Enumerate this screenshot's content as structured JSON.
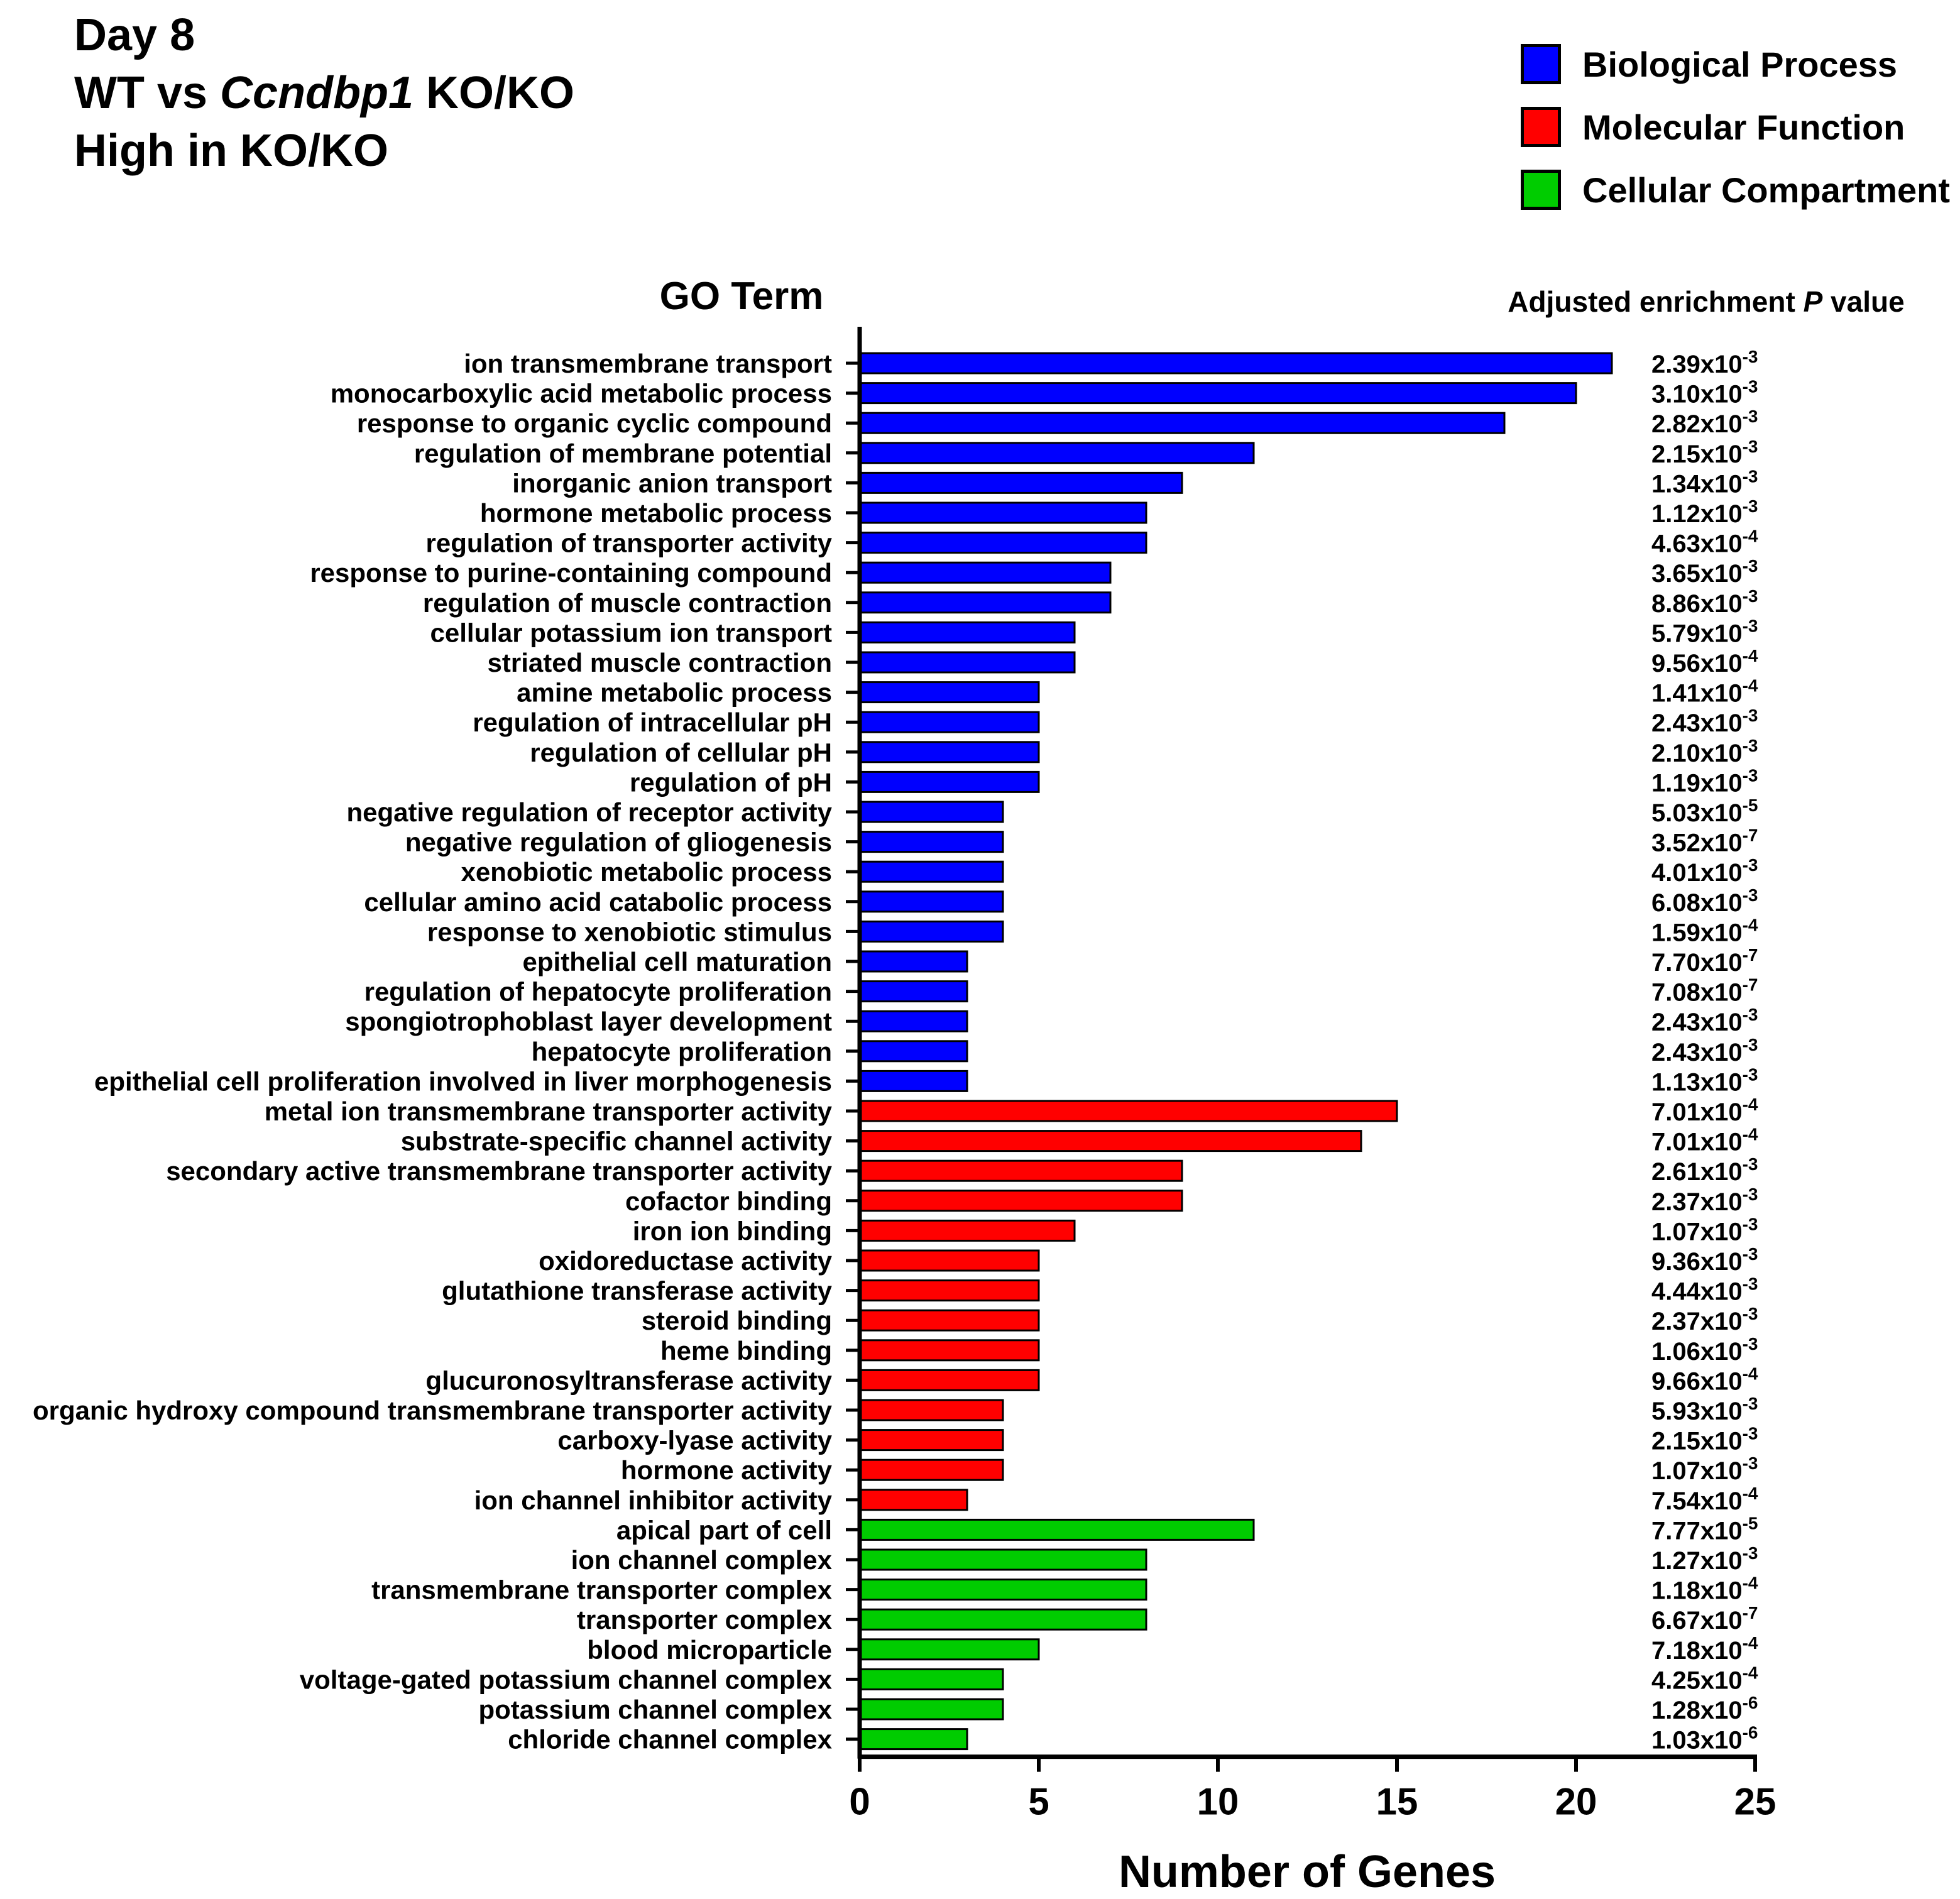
{
  "title": {
    "line1": "Day 8",
    "line2_prefix": "WT vs ",
    "line2_gene": "Ccndbp1",
    "line2_suffix": " KO/KO",
    "line3": "High in KO/KO"
  },
  "legend": [
    {
      "label": "Biological Process",
      "color": "#0000ff"
    },
    {
      "label": "Molecular Function",
      "color": "#ff0000"
    },
    {
      "label": "Cellular Compartment",
      "color": "#00cc00"
    }
  ],
  "chart_data": {
    "type": "bar",
    "orientation": "horizontal",
    "category_header": "GO Term",
    "pvalue_header_prefix": "Adjusted enrichment ",
    "pvalue_header_italic": "P",
    "pvalue_header_suffix": " value",
    "xlabel": "Number of Genes",
    "xlim": [
      0,
      25
    ],
    "xticks": [
      0,
      5,
      10,
      15,
      20,
      25
    ],
    "grid": false,
    "legend_position": "top-right",
    "bars": [
      {
        "term": "ion transmembrane transport",
        "value": 21,
        "group": "Biological Process",
        "p_mantissa": "2.39",
        "p_exp": "-3"
      },
      {
        "term": "monocarboxylic acid metabolic process",
        "value": 20,
        "group": "Biological Process",
        "p_mantissa": "3.10",
        "p_exp": "-3"
      },
      {
        "term": "response to organic cyclic compound",
        "value": 18,
        "group": "Biological Process",
        "p_mantissa": "2.82",
        "p_exp": "-3"
      },
      {
        "term": "regulation of membrane potential",
        "value": 11,
        "group": "Biological Process",
        "p_mantissa": "2.15",
        "p_exp": "-3"
      },
      {
        "term": "inorganic anion transport",
        "value": 9,
        "group": "Biological Process",
        "p_mantissa": "1.34",
        "p_exp": "-3"
      },
      {
        "term": "hormone metabolic process",
        "value": 8,
        "group": "Biological Process",
        "p_mantissa": "1.12",
        "p_exp": "-3"
      },
      {
        "term": "regulation of transporter activity",
        "value": 8,
        "group": "Biological Process",
        "p_mantissa": "4.63",
        "p_exp": "-4"
      },
      {
        "term": "response to purine-containing compound",
        "value": 7,
        "group": "Biological Process",
        "p_mantissa": "3.65",
        "p_exp": "-3"
      },
      {
        "term": "regulation of muscle contraction",
        "value": 7,
        "group": "Biological Process",
        "p_mantissa": "8.86",
        "p_exp": "-3"
      },
      {
        "term": "cellular potassium ion transport",
        "value": 6,
        "group": "Biological Process",
        "p_mantissa": "5.79",
        "p_exp": "-3"
      },
      {
        "term": "striated muscle contraction",
        "value": 6,
        "group": "Biological Process",
        "p_mantissa": "9.56",
        "p_exp": "-4"
      },
      {
        "term": "amine metabolic process",
        "value": 5,
        "group": "Biological Process",
        "p_mantissa": "1.41",
        "p_exp": "-4"
      },
      {
        "term": "regulation of intracellular pH",
        "value": 5,
        "group": "Biological Process",
        "p_mantissa": "2.43",
        "p_exp": "-3"
      },
      {
        "term": "regulation of cellular pH",
        "value": 5,
        "group": "Biological Process",
        "p_mantissa": "2.10",
        "p_exp": "-3"
      },
      {
        "term": "regulation of pH",
        "value": 5,
        "group": "Biological Process",
        "p_mantissa": "1.19",
        "p_exp": "-3"
      },
      {
        "term": "negative regulation of receptor activity",
        "value": 4,
        "group": "Biological Process",
        "p_mantissa": "5.03",
        "p_exp": "-5"
      },
      {
        "term": "negative regulation of gliogenesis",
        "value": 4,
        "group": "Biological Process",
        "p_mantissa": "3.52",
        "p_exp": "-7"
      },
      {
        "term": "xenobiotic metabolic process",
        "value": 4,
        "group": "Biological Process",
        "p_mantissa": "4.01",
        "p_exp": "-3"
      },
      {
        "term": "cellular amino acid catabolic process",
        "value": 4,
        "group": "Biological Process",
        "p_mantissa": "6.08",
        "p_exp": "-3"
      },
      {
        "term": "response to xenobiotic stimulus",
        "value": 4,
        "group": "Biological Process",
        "p_mantissa": "1.59",
        "p_exp": "-4"
      },
      {
        "term": "epithelial cell maturation",
        "value": 3,
        "group": "Biological Process",
        "p_mantissa": "7.70",
        "p_exp": "-7"
      },
      {
        "term": "regulation of hepatocyte proliferation",
        "value": 3,
        "group": "Biological Process",
        "p_mantissa": "7.08",
        "p_exp": "-7"
      },
      {
        "term": "spongiotrophoblast layer development",
        "value": 3,
        "group": "Biological Process",
        "p_mantissa": "2.43",
        "p_exp": "-3"
      },
      {
        "term": "hepatocyte proliferation",
        "value": 3,
        "group": "Biological Process",
        "p_mantissa": "2.43",
        "p_exp": "-3"
      },
      {
        "term": "epithelial cell proliferation involved in liver morphogenesis",
        "value": 3,
        "group": "Biological Process",
        "p_mantissa": "1.13",
        "p_exp": "-3"
      },
      {
        "term": "metal ion transmembrane transporter activity",
        "value": 15,
        "group": "Molecular Function",
        "p_mantissa": "7.01",
        "p_exp": "-4"
      },
      {
        "term": "substrate-specific channel activity",
        "value": 14,
        "group": "Molecular Function",
        "p_mantissa": "7.01",
        "p_exp": "-4"
      },
      {
        "term": "secondary active transmembrane transporter activity",
        "value": 9,
        "group": "Molecular Function",
        "p_mantissa": "2.61",
        "p_exp": "-3"
      },
      {
        "term": "cofactor binding",
        "value": 9,
        "group": "Molecular Function",
        "p_mantissa": "2.37",
        "p_exp": "-3"
      },
      {
        "term": "iron ion binding",
        "value": 6,
        "group": "Molecular Function",
        "p_mantissa": "1.07",
        "p_exp": "-3"
      },
      {
        "term": "oxidoreductase activity",
        "value": 5,
        "group": "Molecular Function",
        "p_mantissa": "9.36",
        "p_exp": "-3"
      },
      {
        "term": "glutathione transferase activity",
        "value": 5,
        "group": "Molecular Function",
        "p_mantissa": "4.44",
        "p_exp": "-3"
      },
      {
        "term": "steroid binding",
        "value": 5,
        "group": "Molecular Function",
        "p_mantissa": "2.37",
        "p_exp": "-3"
      },
      {
        "term": "heme binding",
        "value": 5,
        "group": "Molecular Function",
        "p_mantissa": "1.06",
        "p_exp": "-3"
      },
      {
        "term": "glucuronosyltransferase activity",
        "value": 5,
        "group": "Molecular Function",
        "p_mantissa": "9.66",
        "p_exp": "-4"
      },
      {
        "term": "organic hydroxy compound transmembrane transporter activity",
        "value": 4,
        "group": "Molecular Function",
        "p_mantissa": "5.93",
        "p_exp": "-3"
      },
      {
        "term": "carboxy-lyase activity",
        "value": 4,
        "group": "Molecular Function",
        "p_mantissa": "2.15",
        "p_exp": "-3"
      },
      {
        "term": "hormone activity",
        "value": 4,
        "group": "Molecular Function",
        "p_mantissa": "1.07",
        "p_exp": "-3"
      },
      {
        "term": "ion channel inhibitor activity",
        "value": 3,
        "group": "Molecular Function",
        "p_mantissa": "7.54",
        "p_exp": "-4"
      },
      {
        "term": "apical part of cell",
        "value": 11,
        "group": "Cellular Compartment",
        "p_mantissa": "7.77",
        "p_exp": "-5"
      },
      {
        "term": "ion channel complex",
        "value": 8,
        "group": "Cellular Compartment",
        "p_mantissa": "1.27",
        "p_exp": "-3"
      },
      {
        "term": "transmembrane transporter complex",
        "value": 8,
        "group": "Cellular Compartment",
        "p_mantissa": "1.18",
        "p_exp": "-4"
      },
      {
        "term": "transporter complex",
        "value": 8,
        "group": "Cellular Compartment",
        "p_mantissa": "6.67",
        "p_exp": "-7"
      },
      {
        "term": "blood microparticle",
        "value": 5,
        "group": "Cellular Compartment",
        "p_mantissa": "7.18",
        "p_exp": "-4"
      },
      {
        "term": "voltage-gated potassium channel complex",
        "value": 4,
        "group": "Cellular Compartment",
        "p_mantissa": "4.25",
        "p_exp": "-4"
      },
      {
        "term": "potassium channel complex",
        "value": 4,
        "group": "Cellular Compartment",
        "p_mantissa": "1.28",
        "p_exp": "-6"
      },
      {
        "term": "chloride channel complex",
        "value": 3,
        "group": "Cellular Compartment",
        "p_mantissa": "1.03",
        "p_exp": "-6"
      }
    ]
  }
}
